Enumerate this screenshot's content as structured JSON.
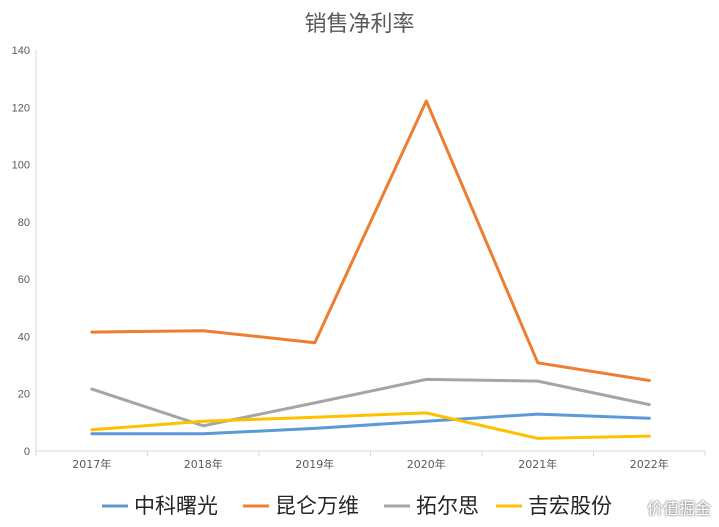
{
  "chart_data": {
    "type": "line",
    "title": "销售净利率",
    "categories": [
      "2017年",
      "2018年",
      "2019年",
      "2020年",
      "2021年",
      "2022年"
    ],
    "ylim": [
      0,
      140
    ],
    "yticks": [
      "0",
      "20",
      "40",
      "60",
      "80",
      "100",
      "120",
      "140"
    ],
    "grid": "none",
    "legend_position": "bottom",
    "series": [
      {
        "name": "中科曙光",
        "color": "#5B9BD5",
        "values": [
          6.0,
          6.0,
          7.9,
          10.4,
          12.9,
          11.4
        ]
      },
      {
        "name": "昆仑万维",
        "color": "#ED7D31",
        "values": [
          41.5,
          42.0,
          37.8,
          122.2,
          30.8,
          24.6
        ]
      },
      {
        "name": "拓尔思",
        "color": "#A5A5A5",
        "values": [
          21.6,
          8.8,
          16.8,
          25.0,
          24.4,
          16.2
        ]
      },
      {
        "name": "吉宏股份",
        "color": "#FFC000",
        "values": [
          7.4,
          10.4,
          11.8,
          13.3,
          4.4,
          5.2
        ]
      }
    ]
  },
  "watermark": "价值掘金"
}
